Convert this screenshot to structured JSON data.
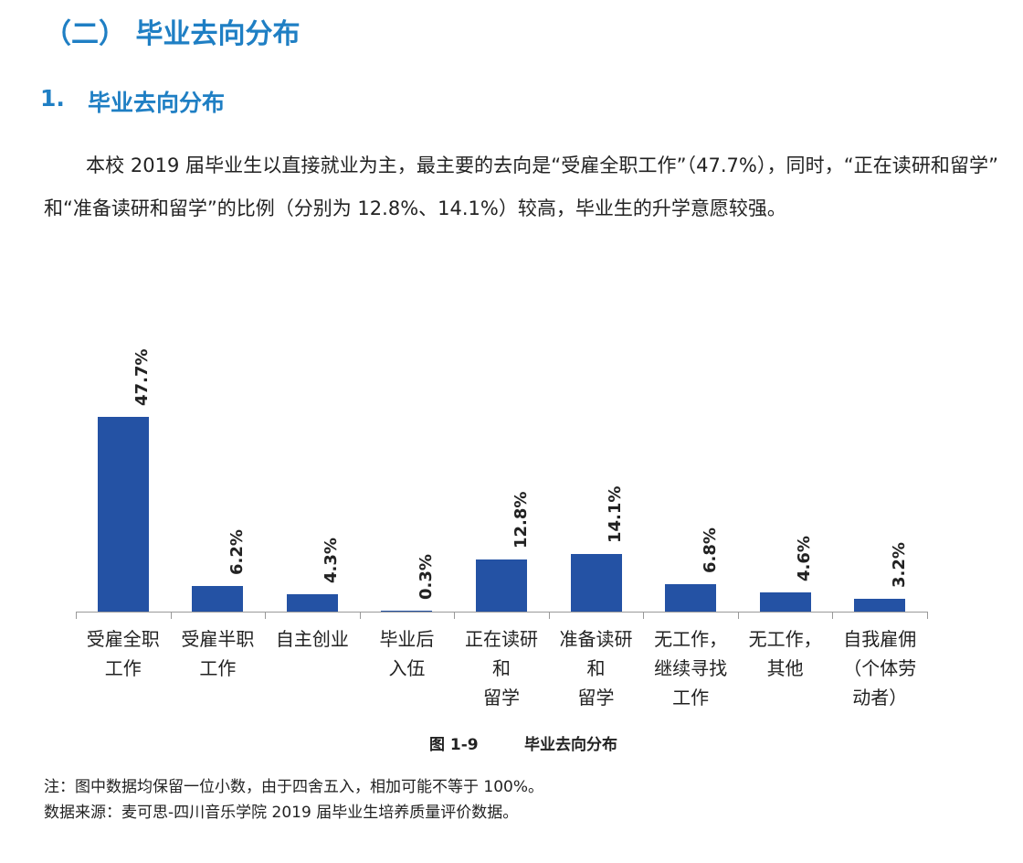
{
  "section_title": "（二） 毕业去向分布",
  "subsection": {
    "number": "1.",
    "title": "毕业去向分布"
  },
  "paragraph": "本校 2019 届毕业生以直接就业为主，最主要的去向是“受雇全职工作”（47.7%），同时，“正在读研和留学”和“准备读研和留学”的比例（分别为 12.8%、14.1%）较高，毕业生的升学意愿较强。",
  "chart_data": {
    "type": "bar",
    "categories": [
      "受雇全职\n工作",
      "受雇半职\n工作",
      "自主创业",
      "毕业后\n入伍",
      "正在读研\n和\n留学",
      "准备读研\n和\n留学",
      "无工作，\n继续寻找\n工作",
      "无工作，\n其他",
      "自我雇佣\n（个体劳\n动者）"
    ],
    "values": [
      47.7,
      6.2,
      4.3,
      0.3,
      12.8,
      14.1,
      6.8,
      4.6,
      3.2
    ],
    "value_labels": [
      "47.7%",
      "6.2%",
      "4.3%",
      "0.3%",
      "12.8%",
      "14.1%",
      "6.8%",
      "4.6%",
      "3.2%"
    ],
    "color": "#2452a4"
  },
  "figure_caption": {
    "number": "图 1-9",
    "title": "毕业去向分布"
  },
  "notes": [
    "注：图中数据均保留一位小数，由于四舍五入，相加可能不等于 100%。",
    "数据来源：麦可思-四川音乐学院 2019 届毕业生培养质量评价数据。"
  ]
}
